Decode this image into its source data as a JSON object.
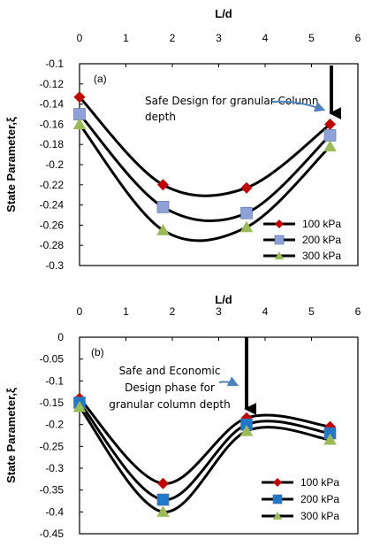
{
  "chart_data": [
    {
      "type": "line",
      "panel_label": "(a)",
      "xlabel": "L/d",
      "ylabel": "State Parameter,ξ",
      "xlim": [
        0,
        6
      ],
      "ylim": [
        -0.3,
        -0.1
      ],
      "x_axis_position": "top",
      "x_ticks": [
        "0",
        "1",
        "2",
        "3",
        "4",
        "5",
        "6"
      ],
      "y_ticks": [
        "-0.1",
        "-0.12",
        "-0.14",
        "-0.16",
        "-0.18",
        "-0.2",
        "-0.22",
        "-0.24",
        "-0.26",
        "-0.28",
        "-0.3"
      ],
      "grid": false,
      "legend_position": "bottom-right",
      "series": [
        {
          "name": "100 kPa",
          "marker": "diamond",
          "color": "#C00000",
          "x": [
            0,
            1.8,
            3.6,
            5.4
          ],
          "y": [
            -0.133,
            -0.22,
            -0.223,
            -0.16
          ]
        },
        {
          "name": "200 kPa",
          "marker": "square",
          "color": "#8EA2D9",
          "x": [
            0,
            1.8,
            3.6,
            5.4
          ],
          "y": [
            -0.15,
            -0.242,
            -0.248,
            -0.171
          ]
        },
        {
          "name": "300 kPa",
          "marker": "triangle",
          "color": "#9BBB59",
          "x": [
            0,
            1.8,
            3.6,
            5.4
          ],
          "y": [
            -0.16,
            -0.265,
            -0.262,
            -0.182
          ]
        }
      ],
      "annotation": {
        "lines": [
          "Safe Design for granular Column",
          "depth"
        ]
      }
    },
    {
      "type": "line",
      "panel_label": "(b)",
      "xlabel": "L/d",
      "ylabel": "State Parameter,ξ",
      "xlim": [
        0,
        6
      ],
      "ylim": [
        -0.45,
        0
      ],
      "x_axis_position": "top",
      "x_ticks": [
        "0",
        "1",
        "2",
        "3",
        "4",
        "5",
        "6"
      ],
      "y_ticks": [
        "0",
        "-0.05",
        "-0.1",
        "-0.15",
        "-0.2",
        "-0.25",
        "-0.3",
        "-0.35",
        "-0.4",
        "-0.45"
      ],
      "grid": false,
      "legend_position": "bottom-right",
      "series": [
        {
          "name": "100 kPa",
          "marker": "diamond",
          "color": "#C00000",
          "x": [
            0,
            1.8,
            3.6,
            5.4
          ],
          "y": [
            -0.14,
            -0.335,
            -0.185,
            -0.205
          ]
        },
        {
          "name": "200 kPa",
          "marker": "square",
          "color": "#1F78C8",
          "x": [
            0,
            1.8,
            3.6,
            5.4
          ],
          "y": [
            -0.15,
            -0.372,
            -0.2,
            -0.22
          ]
        },
        {
          "name": "300 kPa",
          "marker": "triangle",
          "color": "#9BBB59",
          "x": [
            0,
            1.8,
            3.6,
            5.4
          ],
          "y": [
            -0.16,
            -0.4,
            -0.215,
            -0.235
          ]
        }
      ],
      "annotation": {
        "lines": [
          "Safe and Economic",
          "Design phase for",
          "granular column depth"
        ]
      }
    }
  ]
}
